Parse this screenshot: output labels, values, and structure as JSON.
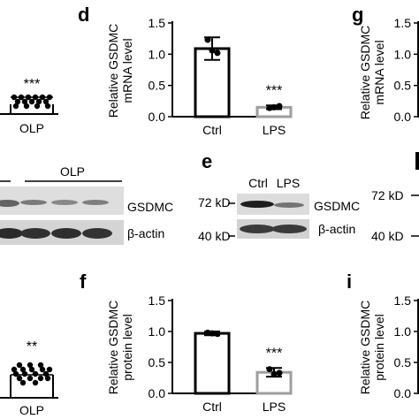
{
  "panels": {
    "d": {
      "letter": "d",
      "ylabel_line1": "Relative GSDMC",
      "ylabel_line2": "mRNA level",
      "significance": "***",
      "chart_data": {
        "type": "bar",
        "categories": [
          "Ctrl",
          "LPS"
        ],
        "values": [
          1.09,
          0.15
        ],
        "errors": [
          0.18,
          0.03
        ],
        "points": [
          [
            1.23,
            1.02,
            1.06
          ],
          [
            0.14,
            0.17,
            0.15
          ]
        ],
        "yticks": [
          "0.0",
          "0.5",
          "1.0",
          "1.5"
        ],
        "ylim": [
          0,
          1.5
        ],
        "bar_colors": [
          "#000000",
          "#9e9e9e"
        ]
      }
    },
    "f": {
      "letter": "f",
      "ylabel_line1": "Relative GSDMC",
      "ylabel_line2": "protein level",
      "significance": "***",
      "chart_data": {
        "type": "bar",
        "categories": [
          "Ctrl",
          "LPS"
        ],
        "values": [
          0.97,
          0.34
        ],
        "errors": [
          0.03,
          0.07
        ],
        "points": [
          [
            0.98,
            0.96,
            0.97
          ],
          [
            0.39,
            0.33,
            0.31
          ]
        ],
        "yticks": [
          "0.0",
          "0.5",
          "1.0",
          "1.5"
        ],
        "ylim": [
          0,
          1.5
        ],
        "bar_colors": [
          "#000000",
          "#9e9e9e"
        ]
      }
    },
    "g": {
      "letter": "g",
      "ylabel_line1": "Relative GSDMC",
      "ylabel_line2": "mRNA level",
      "yticks": [
        "0.0",
        "0.5",
        "1.0",
        "1.5"
      ]
    },
    "i": {
      "letter": "i",
      "ylabel_line1": "Relative GSDMC",
      "ylabel_line2": "protein level",
      "yticks": [
        "0.0",
        "0.5",
        "1.0",
        "1.5"
      ]
    },
    "e": {
      "letter": "e",
      "lanes": [
        "Ctrl",
        "LPS"
      ],
      "markers": [
        "72 kD",
        "40 kD"
      ],
      "bands": [
        "GSDMC",
        "β-actin"
      ],
      "gsdmc_intensity": [
        1.0,
        0.55
      ]
    },
    "h_partial": {
      "markers": [
        "72 kD",
        "40 kD"
      ]
    },
    "left_blot": {
      "group_label": "OLP",
      "bands": [
        "GSDMC",
        "β-actin"
      ]
    },
    "left_top": {
      "significance": "***",
      "category": "OLP"
    },
    "left_bottom": {
      "significance": "**",
      "category": "OLP"
    }
  }
}
